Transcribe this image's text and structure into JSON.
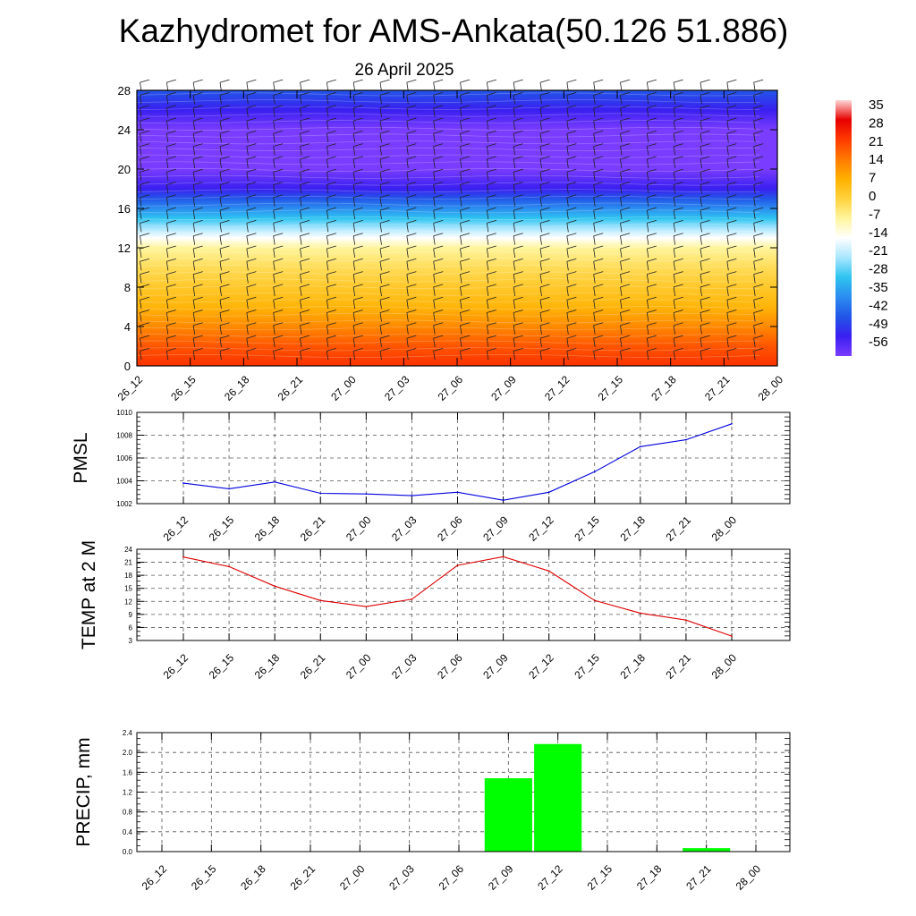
{
  "title": "Kazhydromet for AMS-Ankata(50.126 51.886)",
  "subtitle": "26 April 2025",
  "chart_data": [
    {
      "type": "heatmap",
      "name": "cross-section",
      "x_categories": [
        "26_12",
        "26_15",
        "26_18",
        "26_21",
        "27_00",
        "27_03",
        "27_06",
        "27_09",
        "27_12",
        "27_15",
        "27_18",
        "27_21",
        "28_00"
      ],
      "y_ticks": [
        0,
        4,
        8,
        12,
        16,
        20,
        24,
        28
      ],
      "ylim": [
        0,
        28
      ],
      "profile": {
        "heights": [
          0,
          2,
          4,
          6,
          8,
          10,
          12,
          13,
          14,
          15,
          16,
          17,
          18,
          20,
          22,
          24,
          26,
          28
        ],
        "temps": [
          22,
          18,
          12,
          6,
          2,
          -2,
          -7,
          -14,
          -21,
          -28,
          -35,
          -42,
          -49,
          -56,
          -58,
          -56,
          -49,
          -42
        ]
      },
      "colorbar": {
        "labels": [
          "35",
          "28",
          "21",
          "14",
          "7",
          "0",
          "-7",
          "-14",
          "-21",
          "-28",
          "-35",
          "-42",
          "-49",
          "-56"
        ],
        "colors": [
          "#ffd6d6",
          "#e60000",
          "#ff3a00",
          "#ff7a00",
          "#ffb000",
          "#ffd23c",
          "#fff59d",
          "#ffffff",
          "#a8e6ff",
          "#2ec4f0",
          "#2b8cf0",
          "#2256e8",
          "#3a1ff0",
          "#7a3cff"
        ]
      },
      "wind_barbs": true
    },
    {
      "type": "line",
      "name": "pmsl",
      "ylabel": "PMSL",
      "categories": [
        "26_12",
        "26_15",
        "26_18",
        "26_21",
        "27_00",
        "27_03",
        "27_06",
        "27_09",
        "27_12",
        "27_15",
        "27_18",
        "27_21",
        "28_00"
      ],
      "values": [
        1003.8,
        1003.3,
        1003.9,
        1002.9,
        1002.85,
        1002.7,
        1003.0,
        1002.3,
        1003.0,
        1004.8,
        1007.0,
        1007.6,
        1009.0
      ],
      "y_ticks": [
        1002,
        1004,
        1006,
        1008,
        1010
      ],
      "ylim": [
        1002,
        1010
      ],
      "color": "#0000dd",
      "grid": true
    },
    {
      "type": "line",
      "name": "temp2m",
      "ylabel": "TEMP at 2 M",
      "categories": [
        "26_12",
        "26_15",
        "26_18",
        "26_21",
        "27_00",
        "27_03",
        "27_06",
        "27_09",
        "27_12",
        "27_15",
        "27_18",
        "27_21",
        "28_00"
      ],
      "values": [
        22.2,
        20.0,
        15.5,
        12.2,
        10.8,
        12.5,
        20.3,
        22.3,
        19.0,
        12.2,
        9.3,
        7.7,
        4.0
      ],
      "y_ticks": [
        3,
        6,
        9,
        12,
        15,
        18,
        21,
        24
      ],
      "ylim": [
        3,
        24
      ],
      "color": "#dd0000",
      "grid": true
    },
    {
      "type": "bar",
      "name": "precip",
      "ylabel": "PRECIP, mm",
      "categories": [
        "26_12",
        "26_15",
        "26_18",
        "26_21",
        "27_00",
        "27_03",
        "27_06",
        "27_09",
        "27_12",
        "27_15",
        "27_18",
        "27_21",
        "28_00"
      ],
      "values": [
        0,
        0,
        0,
        0,
        0,
        0,
        0,
        1.48,
        2.17,
        0,
        0,
        0.07,
        0
      ],
      "y_ticks": [
        "0.0",
        "0.4",
        "0.8",
        "1.2",
        "1.6",
        "2.0",
        "2.4"
      ],
      "ylim": [
        0,
        2.4
      ],
      "color": "#00ff00",
      "grid": true
    }
  ]
}
